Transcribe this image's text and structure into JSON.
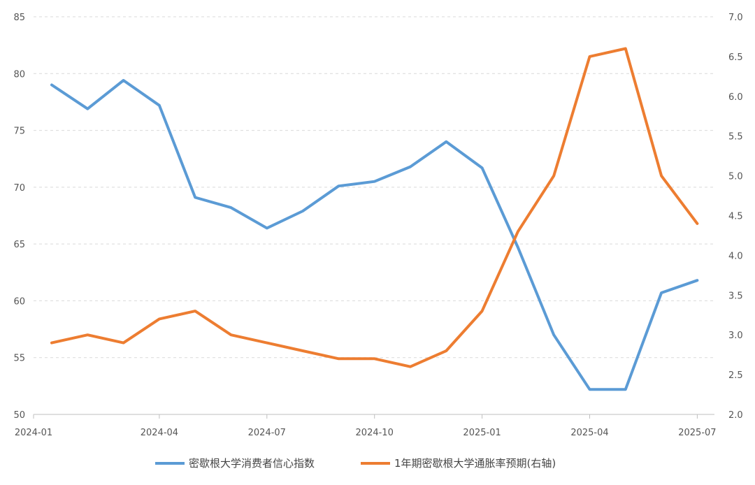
{
  "chart_data": {
    "type": "line",
    "x": [
      "2024-01",
      "2024-02",
      "2024-03",
      "2024-04",
      "2024-05",
      "2024-06",
      "2024-07",
      "2024-08",
      "2024-09",
      "2024-10",
      "2024-11",
      "2024-12",
      "2025-01",
      "2025-02",
      "2025-03",
      "2025-04",
      "2025-05",
      "2025-06",
      "2025-07"
    ],
    "x_tick_labels": [
      "2024-01",
      "2024-04",
      "2024-07",
      "2024-10",
      "2025-01",
      "2025-04",
      "2025-07"
    ],
    "y_left": {
      "range": [
        50,
        85
      ],
      "ticks": [
        "50",
        "55",
        "60",
        "65",
        "70",
        "75",
        "80",
        "85"
      ]
    },
    "y_right": {
      "range": [
        2.0,
        7.0
      ],
      "ticks": [
        "2.0",
        "2.5",
        "3.0",
        "3.5",
        "4.0",
        "4.5",
        "5.0",
        "5.5",
        "6.0",
        "6.5",
        "7.0"
      ]
    },
    "grid": "horizontal dashed",
    "legend_position": "bottom",
    "series": [
      {
        "name": "密歇根大学消费者信心指数",
        "axis": "left",
        "color": "#5b9bd5",
        "values": [
          79.0,
          76.9,
          79.4,
          77.2,
          69.1,
          68.2,
          66.4,
          67.9,
          70.1,
          70.5,
          71.8,
          74.0,
          71.7,
          64.7,
          57.0,
          52.2,
          52.2,
          60.7,
          61.8
        ]
      },
      {
        "name": "1年期密歇根大学通胀率预期(右轴)",
        "axis": "right",
        "color": "#ed7d31",
        "values": [
          2.9,
          3.0,
          2.9,
          3.2,
          3.3,
          3.0,
          2.9,
          2.8,
          2.7,
          2.7,
          2.6,
          2.8,
          3.3,
          4.3,
          5.0,
          6.5,
          6.6,
          5.0,
          4.4
        ]
      }
    ]
  }
}
